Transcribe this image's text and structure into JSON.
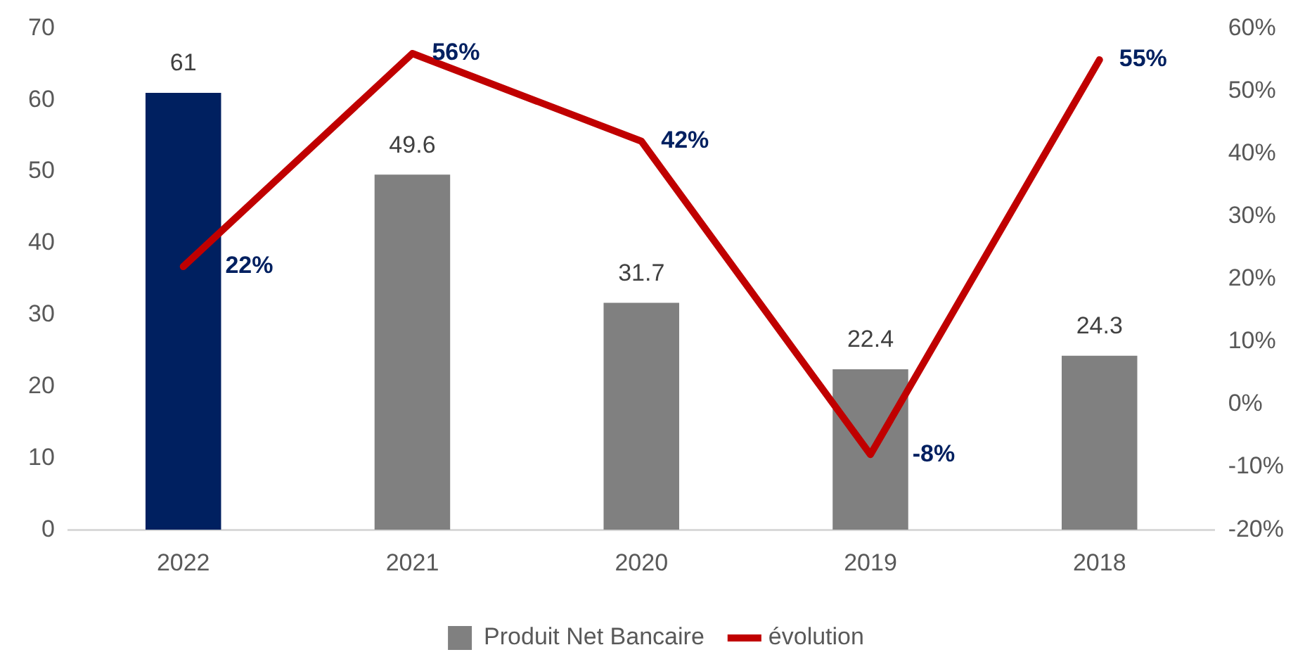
{
  "chart_data": {
    "type": "bar",
    "categories": [
      "2022",
      "2021",
      "2020",
      "2019",
      "2018"
    ],
    "series": [
      {
        "name": "Produit Net Bancaire",
        "color": "#808080",
        "colors": [
          "#002060",
          "#808080",
          "#808080",
          "#808080",
          "#808080"
        ],
        "values": [
          61,
          49.6,
          31.7,
          22.4,
          24.3
        ],
        "value_labels": [
          "61",
          "49.6",
          "31.7",
          "22.4",
          "24.3"
        ]
      },
      {
        "name": "évolution",
        "type": "line",
        "axis": "y2",
        "color": "#c00000",
        "values": [
          22,
          56,
          42,
          -8,
          55
        ],
        "value_labels": [
          "22%",
          "56%",
          "42%",
          "-8%",
          "55%"
        ]
      }
    ],
    "ylim": [
      0,
      70
    ],
    "yticks": [
      0,
      10,
      20,
      30,
      40,
      50,
      60,
      70
    ],
    "y2lim": [
      -20,
      60
    ],
    "y2ticks": [
      {
        "value": -20,
        "label": "-20%"
      },
      {
        "value": -10,
        "label": "-10%"
      },
      {
        "value": 0,
        "label": "0%"
      },
      {
        "value": 10,
        "label": "10%"
      },
      {
        "value": 20,
        "label": "20%"
      },
      {
        "value": 30,
        "label": "30%"
      },
      {
        "value": 40,
        "label": "40%"
      },
      {
        "value": 50,
        "label": "50%"
      },
      {
        "value": 60,
        "label": "60%"
      }
    ],
    "grid": false,
    "legend": "bottom",
    "marker": "none",
    "line_style": "solid"
  }
}
